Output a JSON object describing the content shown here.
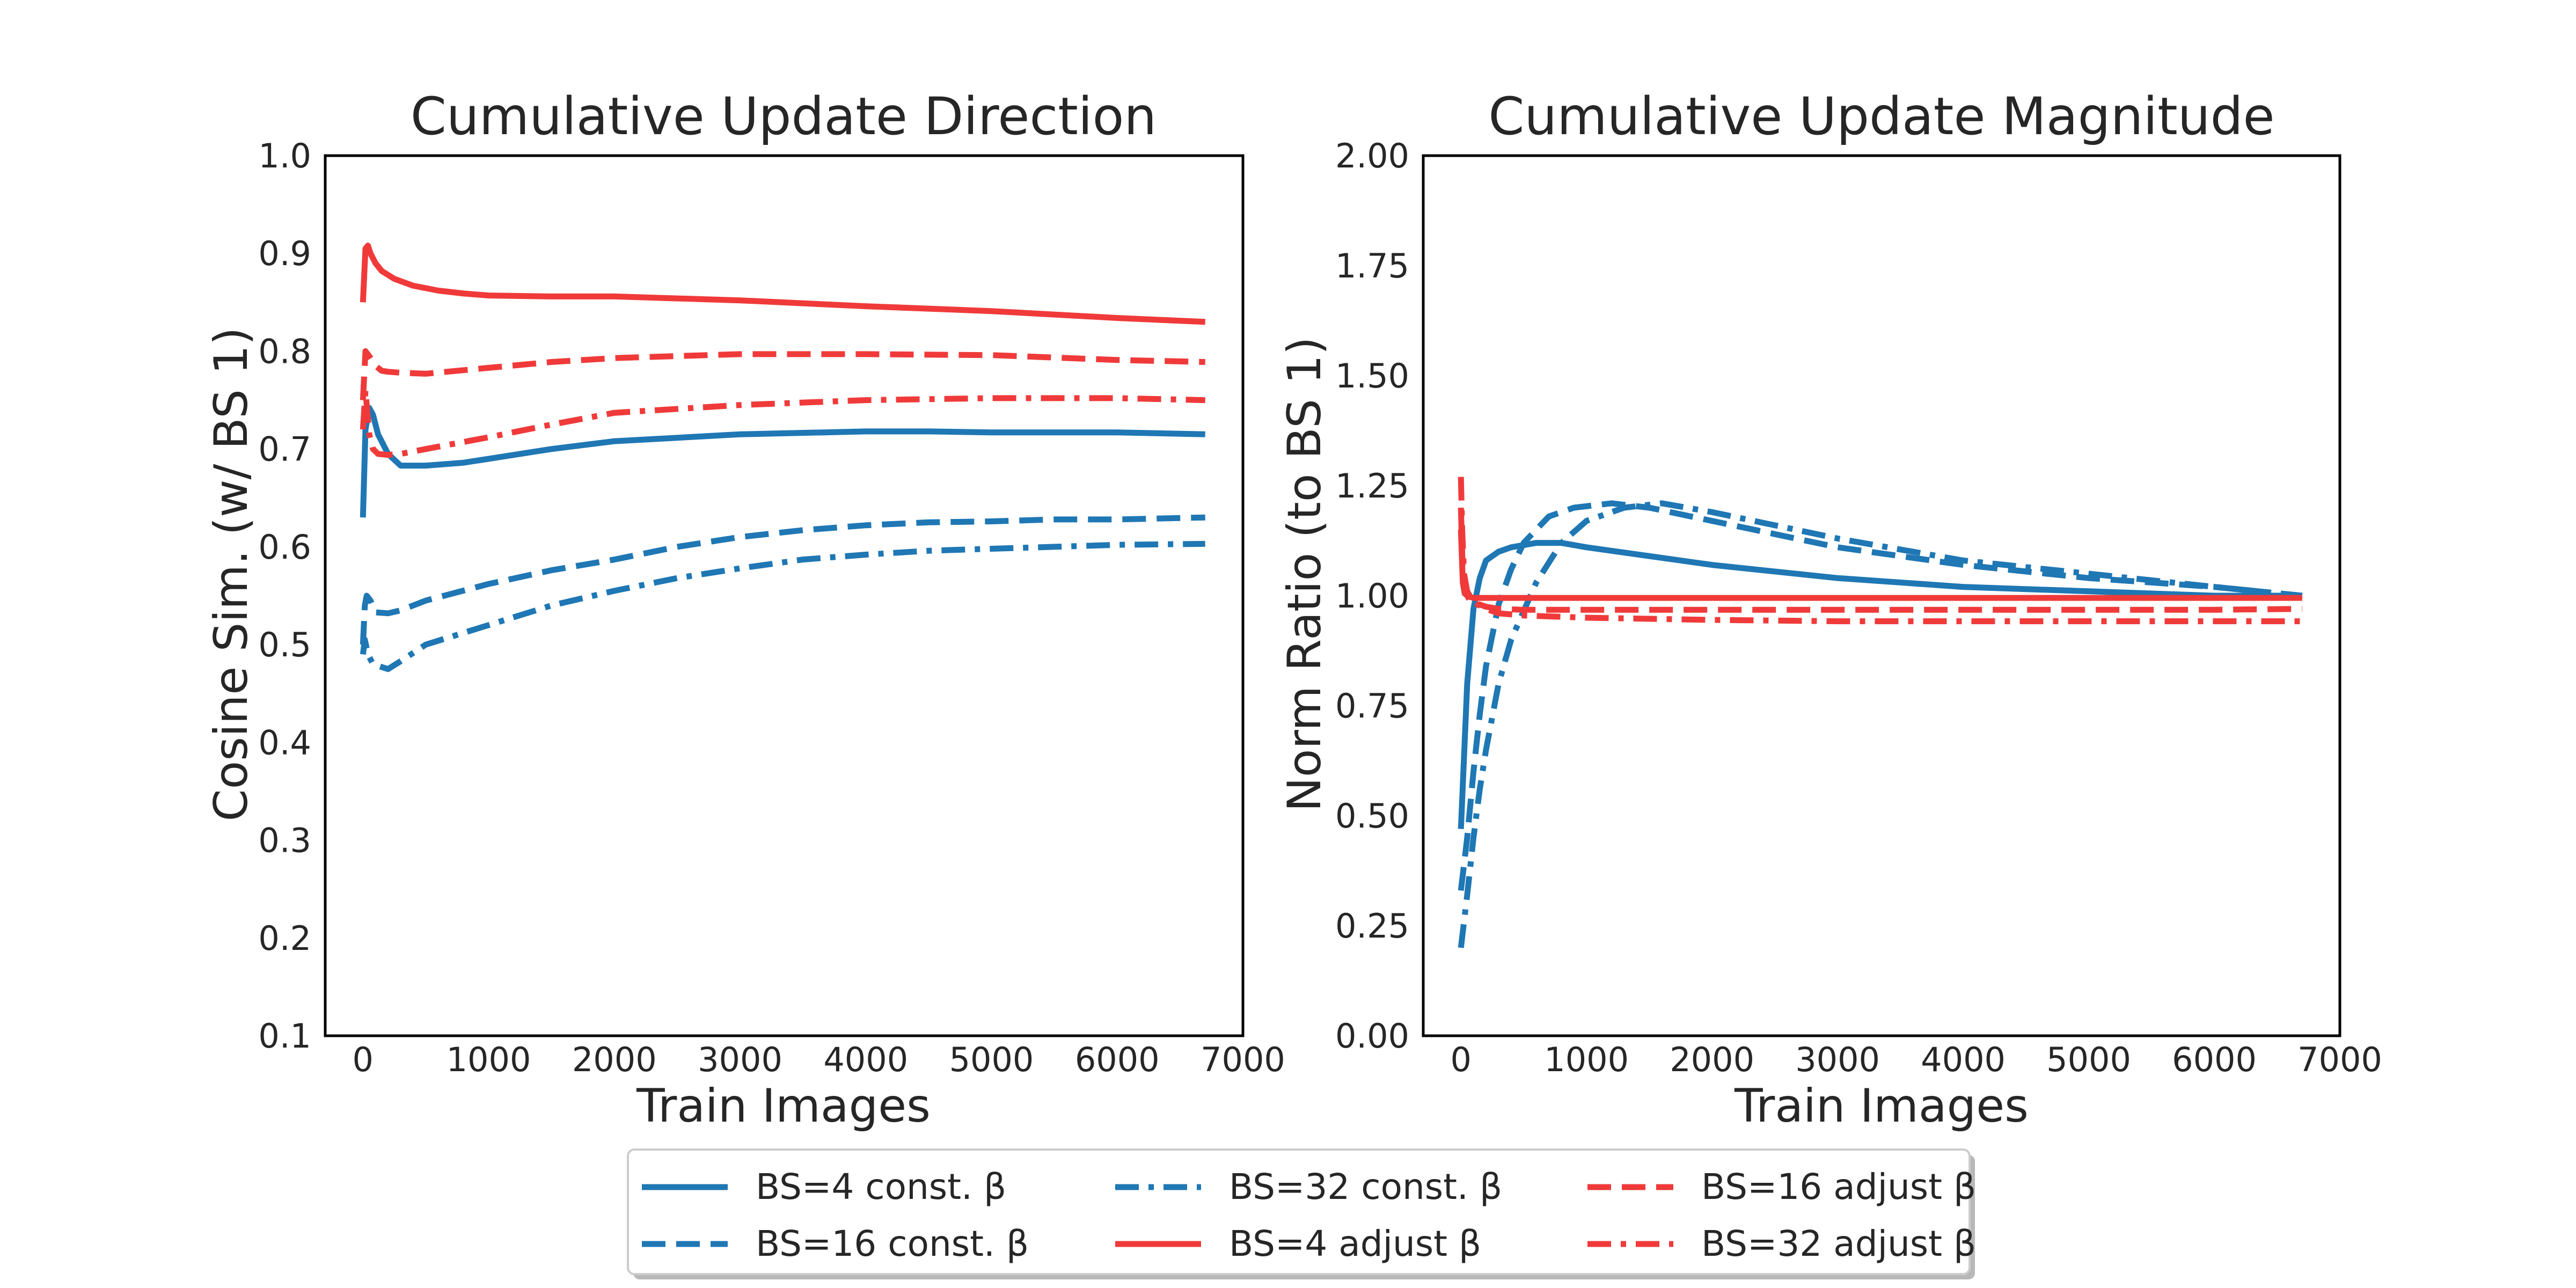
{
  "colors": {
    "blue": "#1f77b4",
    "red": "#f03a3a"
  },
  "legend": {
    "placement": "bottom-center",
    "entries": [
      {
        "label": "BS=4 const. β",
        "color": "#1f77b4",
        "dash": "solid"
      },
      {
        "label": "BS=16 const. β",
        "color": "#1f77b4",
        "dash": "dashed"
      },
      {
        "label": "BS=32 const. β",
        "color": "#1f77b4",
        "dash": "dashdot"
      },
      {
        "label": "BS=4 adjust β",
        "color": "#f03a3a",
        "dash": "solid"
      },
      {
        "label": "BS=16 adjust β",
        "color": "#f03a3a",
        "dash": "dashed"
      },
      {
        "label": "BS=32 adjust β",
        "color": "#f03a3a",
        "dash": "dashdot"
      }
    ]
  },
  "chart_data": [
    {
      "type": "line",
      "title": "Cumulative Update Direction",
      "xlabel": "Train Images",
      "ylabel": "Cosine Sim. (w/ BS 1)",
      "xlim": [
        -300,
        7000
      ],
      "ylim": [
        0.1,
        1.0
      ],
      "xticks": [
        0,
        1000,
        2000,
        3000,
        4000,
        5000,
        6000,
        7000
      ],
      "xtick_labels": [
        "0",
        "1000",
        "2000",
        "3000",
        "4000",
        "5000",
        "6000",
        "7000"
      ],
      "yticks": [
        0.1,
        0.2,
        0.3,
        0.4,
        0.5,
        0.6,
        0.7,
        0.8,
        0.9,
        1.0
      ],
      "ytick_labels": [
        "0.1",
        "0.2",
        "0.3",
        "0.4",
        "0.5",
        "0.6",
        "0.7",
        "0.8",
        "0.9",
        "1.0"
      ],
      "grid": false,
      "series": [
        {
          "name": "BS=4 const. β",
          "color": "#1f77b4",
          "dash": "solid",
          "x": [
            0,
            20,
            50,
            80,
            120,
            200,
            300,
            500,
            800,
            1000,
            1500,
            2000,
            3000,
            4000,
            4500,
            5000,
            6000,
            6700
          ],
          "y": [
            0.63,
            0.72,
            0.742,
            0.735,
            0.715,
            0.695,
            0.683,
            0.683,
            0.686,
            0.69,
            0.7,
            0.708,
            0.715,
            0.718,
            0.718,
            0.717,
            0.717,
            0.715
          ]
        },
        {
          "name": "BS=16 const. β",
          "color": "#1f77b4",
          "dash": "dashed",
          "x": [
            0,
            15,
            30,
            60,
            100,
            200,
            300,
            500,
            1000,
            1500,
            2000,
            2500,
            3000,
            3500,
            4000,
            4500,
            5000,
            5500,
            6000,
            6700
          ],
          "y": [
            0.5,
            0.54,
            0.55,
            0.545,
            0.533,
            0.532,
            0.535,
            0.545,
            0.562,
            0.576,
            0.587,
            0.6,
            0.61,
            0.617,
            0.622,
            0.625,
            0.626,
            0.628,
            0.628,
            0.63
          ]
        },
        {
          "name": "BS=32 const. β",
          "color": "#1f77b4",
          "dash": "dashdot",
          "x": [
            0,
            15,
            40,
            80,
            150,
            200,
            300,
            500,
            1000,
            1500,
            2000,
            2500,
            3000,
            3500,
            4000,
            4500,
            5000,
            5500,
            6000,
            6700
          ],
          "y": [
            0.49,
            0.505,
            0.49,
            0.48,
            0.477,
            0.475,
            0.483,
            0.5,
            0.52,
            0.54,
            0.555,
            0.568,
            0.578,
            0.587,
            0.592,
            0.596,
            0.598,
            0.6,
            0.602,
            0.603
          ]
        },
        {
          "name": "BS=4 adjust β",
          "color": "#f03a3a",
          "dash": "solid",
          "x": [
            0,
            20,
            40,
            60,
            100,
            150,
            250,
            400,
            600,
            800,
            1000,
            1500,
            2000,
            3000,
            4000,
            5000,
            6000,
            6700
          ],
          "y": [
            0.85,
            0.905,
            0.908,
            0.9,
            0.89,
            0.882,
            0.874,
            0.867,
            0.862,
            0.859,
            0.857,
            0.856,
            0.856,
            0.852,
            0.846,
            0.841,
            0.834,
            0.83
          ]
        },
        {
          "name": "BS=16 adjust β",
          "color": "#f03a3a",
          "dash": "dashed",
          "x": [
            0,
            20,
            50,
            100,
            150,
            200,
            300,
            500,
            1000,
            1500,
            2000,
            3000,
            4000,
            5000,
            6000,
            6700
          ],
          "y": [
            0.75,
            0.8,
            0.795,
            0.785,
            0.78,
            0.779,
            0.778,
            0.777,
            0.783,
            0.789,
            0.793,
            0.797,
            0.797,
            0.796,
            0.791,
            0.789
          ]
        },
        {
          "name": "BS=32 adjust β",
          "color": "#f03a3a",
          "dash": "dashdot",
          "x": [
            0,
            20,
            50,
            80,
            120,
            200,
            300,
            500,
            1000,
            1500,
            2000,
            3000,
            4000,
            5000,
            6000,
            6700
          ],
          "y": [
            0.72,
            0.76,
            0.715,
            0.7,
            0.695,
            0.694,
            0.695,
            0.7,
            0.712,
            0.725,
            0.737,
            0.745,
            0.75,
            0.752,
            0.752,
            0.75
          ]
        }
      ]
    },
    {
      "type": "line",
      "title": "Cumulative Update Magnitude",
      "xlabel": "Train Images",
      "ylabel": "Norm Ratio (to BS 1)",
      "xlim": [
        -300,
        7000
      ],
      "ylim": [
        0.0,
        2.0
      ],
      "xticks": [
        0,
        1000,
        2000,
        3000,
        4000,
        5000,
        6000,
        7000
      ],
      "xtick_labels": [
        "0",
        "1000",
        "2000",
        "3000",
        "4000",
        "5000",
        "6000",
        "7000"
      ],
      "yticks": [
        0.0,
        0.25,
        0.5,
        0.75,
        1.0,
        1.25,
        1.5,
        1.75,
        2.0
      ],
      "ytick_labels": [
        "0.00",
        "0.25",
        "0.50",
        "0.75",
        "1.00",
        "1.25",
        "1.50",
        "1.75",
        "2.00"
      ],
      "grid": false,
      "series": [
        {
          "name": "BS=4 const. β",
          "color": "#1f77b4",
          "dash": "solid",
          "x": [
            0,
            50,
            100,
            150,
            200,
            300,
            400,
            600,
            800,
            1000,
            1500,
            2000,
            3000,
            4000,
            5000,
            6000,
            6700
          ],
          "y": [
            0.47,
            0.8,
            0.97,
            1.04,
            1.08,
            1.1,
            1.11,
            1.12,
            1.12,
            1.11,
            1.09,
            1.07,
            1.04,
            1.02,
            1.01,
            1.0,
            1.0
          ]
        },
        {
          "name": "BS=16 const. β",
          "color": "#1f77b4",
          "dash": "dashed",
          "x": [
            0,
            50,
            100,
            150,
            200,
            300,
            400,
            500,
            700,
            900,
            1200,
            1500,
            2000,
            2500,
            3000,
            4000,
            5000,
            6000,
            6700
          ],
          "y": [
            0.33,
            0.45,
            0.6,
            0.73,
            0.84,
            0.98,
            1.06,
            1.12,
            1.18,
            1.2,
            1.21,
            1.2,
            1.17,
            1.14,
            1.11,
            1.07,
            1.04,
            1.02,
            1.0
          ]
        },
        {
          "name": "BS=32 const. β",
          "color": "#1f77b4",
          "dash": "dashdot",
          "x": [
            0,
            50,
            100,
            150,
            200,
            300,
            400,
            600,
            800,
            1000,
            1300,
            1600,
            2000,
            2500,
            3000,
            4000,
            5000,
            6000,
            6700
          ],
          "y": [
            0.2,
            0.32,
            0.45,
            0.56,
            0.65,
            0.8,
            0.9,
            1.03,
            1.12,
            1.17,
            1.2,
            1.21,
            1.19,
            1.16,
            1.13,
            1.08,
            1.05,
            1.02,
            1.0
          ]
        },
        {
          "name": "BS=4 adjust β",
          "color": "#f03a3a",
          "dash": "solid",
          "x": [
            0,
            15,
            30,
            60,
            100,
            200,
            400,
            1000,
            2000,
            4000,
            6000,
            6700
          ],
          "y": [
            1.15,
            1.03,
            1.005,
            0.998,
            0.995,
            0.995,
            0.995,
            0.995,
            0.995,
            0.995,
            0.995,
            0.995
          ]
        },
        {
          "name": "BS=16 adjust β",
          "color": "#f03a3a",
          "dash": "dashed",
          "x": [
            0,
            15,
            30,
            60,
            100,
            200,
            300,
            500,
            1000,
            2000,
            3000,
            4000,
            5000,
            6000,
            6700
          ],
          "y": [
            1.2,
            1.05,
            1.01,
            0.995,
            0.985,
            0.975,
            0.97,
            0.968,
            0.968,
            0.968,
            0.968,
            0.968,
            0.968,
            0.968,
            0.97
          ]
        },
        {
          "name": "BS=32 adjust β",
          "color": "#f03a3a",
          "dash": "dashdot",
          "x": [
            0,
            10,
            25,
            50,
            100,
            200,
            300,
            500,
            1000,
            2000,
            3000,
            4000,
            5000,
            6000,
            6700
          ],
          "y": [
            1.27,
            1.15,
            1.05,
            1.01,
            0.985,
            0.97,
            0.96,
            0.955,
            0.95,
            0.945,
            0.942,
            0.942,
            0.942,
            0.942,
            0.942
          ]
        }
      ]
    }
  ]
}
